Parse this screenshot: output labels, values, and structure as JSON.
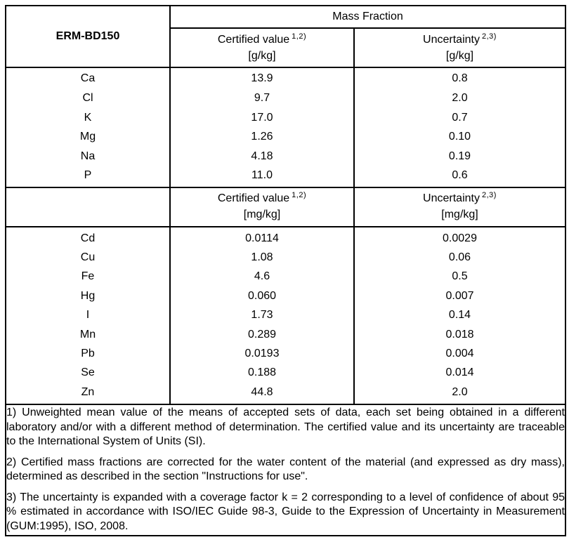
{
  "table": {
    "id_label": "ERM-BD150",
    "mass_fraction_label": "Mass Fraction",
    "g_block": {
      "certified_header": {
        "label": "Certified value",
        "sup": "1,2)",
        "unit": "[g/kg]"
      },
      "uncertainty_header": {
        "label": "Uncertainty",
        "sup": "2,3)",
        "unit": "[g/kg]"
      },
      "rows": [
        {
          "element": "Ca",
          "certified": "13.9",
          "uncertainty": "0.8"
        },
        {
          "element": "Cl",
          "certified": "9.7",
          "uncertainty": "2.0"
        },
        {
          "element": "K",
          "certified": "17.0",
          "uncertainty": "0.7"
        },
        {
          "element": "Mg",
          "certified": "1.26",
          "uncertainty": "0.10"
        },
        {
          "element": "Na",
          "certified": "4.18",
          "uncertainty": "0.19"
        },
        {
          "element": "P",
          "certified": "11.0",
          "uncertainty": "0.6"
        }
      ]
    },
    "mg_block": {
      "certified_header": {
        "label": "Certified value",
        "sup": "1,2)",
        "unit": "[mg/kg]"
      },
      "uncertainty_header": {
        "label": "Uncertainty",
        "sup": "2,3)",
        "unit": "[mg/kg]"
      },
      "rows": [
        {
          "element": "Cd",
          "certified": "0.0114",
          "uncertainty": "0.0029"
        },
        {
          "element": "Cu",
          "certified": "1.08",
          "uncertainty": "0.06"
        },
        {
          "element": "Fe",
          "certified": "4.6",
          "uncertainty": "0.5"
        },
        {
          "element": "Hg",
          "certified": "0.060",
          "uncertainty": "0.007"
        },
        {
          "element": "I",
          "certified": "1.73",
          "uncertainty": "0.14"
        },
        {
          "element": "Mn",
          "certified": "0.289",
          "uncertainty": "0.018"
        },
        {
          "element": "Pb",
          "certified": "0.0193",
          "uncertainty": "0.004"
        },
        {
          "element": "Se",
          "certified": "0.188",
          "uncertainty": "0.014"
        },
        {
          "element": "Zn",
          "certified": "44.8",
          "uncertainty": "2.0"
        }
      ]
    },
    "footnotes": [
      "1) Unweighted mean value of the means of accepted sets of data, each set being obtained in a different laboratory and/or with a different method of determination. The certified value and its uncertainty are traceable to the International System of Units (SI).",
      "2) Certified mass fractions are corrected for the water content of the material (and expressed as dry mass), determined as described in the section \"Instructions for use\".",
      "3) The uncertainty is expanded with a coverage factor k = 2 corresponding to a level of confidence of about 95 % estimated in accordance with ISO/IEC Guide 98-3, Guide to the Expression of Uncertainty in Measurement (GUM:1995), ISO, 2008."
    ],
    "colors": {
      "border": "#000000",
      "text": "#000000",
      "background": "#ffffff"
    }
  }
}
